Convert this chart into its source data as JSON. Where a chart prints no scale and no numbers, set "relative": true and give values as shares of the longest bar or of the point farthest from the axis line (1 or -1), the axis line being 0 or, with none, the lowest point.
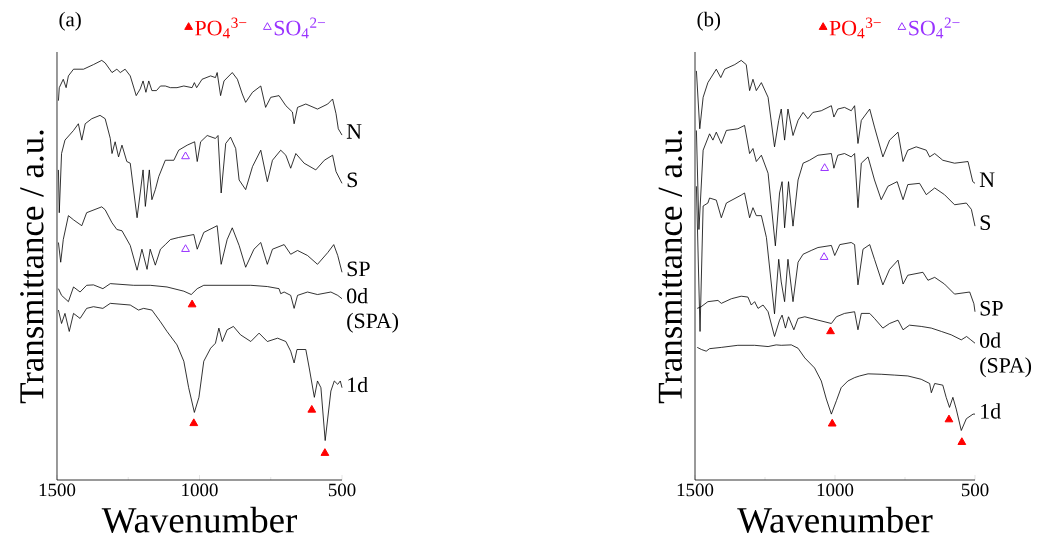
{
  "chart_data": [
    {
      "type": "line",
      "title": "(a)",
      "xlabel": "Wavenumber",
      "ylabel": "Transmittance / a.u.",
      "relative": true,
      "xlim": [
        1500,
        500
      ],
      "xticks": [
        1500,
        1000,
        500
      ],
      "legend": "top",
      "series": [
        {
          "name": "N",
          "color": "#000000",
          "x": [
            1495,
            1492,
            1478,
            1468,
            1460,
            1442,
            1407,
            1372,
            1343,
            1331,
            1307,
            1290,
            1278,
            1261,
            1243,
            1222,
            1208,
            1198,
            1188,
            1178,
            1167,
            1151,
            1137,
            1120,
            1102,
            1079,
            1055,
            1026,
            1018,
            1010,
            991,
            961,
            944,
            938,
            926,
            914,
            885,
            867,
            850,
            838,
            814,
            785,
            768,
            750,
            721,
            697,
            674,
            668,
            656,
            627,
            586,
            550,
            533,
            521,
            513,
            500
          ],
          "values": [
            0.904,
            0.935,
            0.955,
            0.935,
            0.963,
            0.979,
            0.979,
            0.99,
            1,
            0.994,
            0.971,
            0.979,
            0.971,
            0.979,
            0.963,
            0.916,
            0.932,
            0.951,
            0.924,
            0.951,
            0.928,
            0.928,
            0.939,
            0.939,
            0.935,
            0.935,
            0.939,
            0.935,
            0.947,
            0.935,
            0.955,
            0.963,
            0.959,
            0.971,
            0.916,
            0.951,
            0.971,
            0.955,
            0.92,
            0.9,
            0.924,
            0.939,
            0.888,
            0.912,
            0.916,
            0.892,
            0.877,
            0.849,
            0.888,
            0.896,
            0.884,
            0.896,
            0.908,
            0.873,
            0.837,
            0.822
          ]
        },
        {
          "name": "S",
          "color": "#000000",
          "x": [
            1495,
            1492,
            1484,
            1472,
            1442,
            1425,
            1413,
            1401,
            1378,
            1349,
            1331,
            1313,
            1307,
            1296,
            1284,
            1272,
            1255,
            1243,
            1219,
            1208,
            1198,
            1190,
            1176,
            1167,
            1155,
            1143,
            1120,
            1090,
            1073,
            1043,
            1017,
            1008,
            996,
            973,
            944,
            935,
            924,
            908,
            891,
            873,
            861,
            838,
            814,
            785,
            762,
            744,
            715,
            697,
            680,
            662,
            633,
            592,
            562,
            533,
            521,
            500
          ],
          "values": [
            0.739,
            0.637,
            0.778,
            0.81,
            0.833,
            0.849,
            0.81,
            0.849,
            0.861,
            0.869,
            0.861,
            0.814,
            0.778,
            0.806,
            0.77,
            0.798,
            0.759,
            0.755,
            0.625,
            0.684,
            0.739,
            0.652,
            0.739,
            0.668,
            0.692,
            0.723,
            0.762,
            0.762,
            0.786,
            0.798,
            0.806,
            0.759,
            0.806,
            0.821,
            0.814,
            0.821,
            0.684,
            0.802,
            0.817,
            0.79,
            0.715,
            0.692,
            0.747,
            0.786,
            0.711,
            0.762,
            0.786,
            0.774,
            0.743,
            0.778,
            0.755,
            0.739,
            0.762,
            0.774,
            0.735,
            0.707
          ]
        },
        {
          "name": "SP",
          "color": "#000000",
          "x": [
            1495,
            1487,
            1478,
            1460,
            1442,
            1413,
            1396,
            1343,
            1331,
            1307,
            1290,
            1272,
            1243,
            1219,
            1202,
            1184,
            1173,
            1155,
            1137,
            1120,
            1102,
            1073,
            1020,
            1008,
            985,
            938,
            924,
            903,
            885,
            861,
            838,
            809,
            785,
            762,
            744,
            703,
            680,
            656,
            621,
            586,
            550,
            529,
            515,
            500
          ],
          "values": [
            0.566,
            0.519,
            0.573,
            0.63,
            0.62,
            0.606,
            0.637,
            0.651,
            0.644,
            0.613,
            0.597,
            0.594,
            0.559,
            0.5,
            0.55,
            0.502,
            0.55,
            0.512,
            0.55,
            0.561,
            0.573,
            0.578,
            0.585,
            0.55,
            0.59,
            0.606,
            0.514,
            0.573,
            0.601,
            0.559,
            0.507,
            0.55,
            0.566,
            0.514,
            0.55,
            0.561,
            0.538,
            0.547,
            0.535,
            0.514,
            0.542,
            0.561,
            0.535,
            0.495
          ]
        },
        {
          "name": "0d (SPA)",
          "color": "#000000",
          "x": [
            1495,
            1484,
            1460,
            1442,
            1419,
            1396,
            1372,
            1339,
            1313,
            1231,
            1173,
            1114,
            1055,
            1029,
            1008,
            985,
            820,
            762,
            721,
            715,
            703,
            680,
            668,
            656,
            621,
            586,
            539,
            515,
            500
          ],
          "values": [
            0.456,
            0.44,
            0.425,
            0.46,
            0.448,
            0.464,
            0.465,
            0.456,
            0.468,
            0.464,
            0.464,
            0.46,
            0.45,
            0.442,
            0.456,
            0.464,
            0.464,
            0.461,
            0.456,
            0.444,
            0.448,
            0.44,
            0.409,
            0.44,
            0.448,
            0.442,
            0.448,
            0.44,
            0.432
          ]
        },
        {
          "name": "1d",
          "color": "#000000",
          "x": [
            1495,
            1484,
            1472,
            1457,
            1442,
            1419,
            1396,
            1372,
            1339,
            1313,
            1243,
            1214,
            1196,
            1167,
            1137,
            1114,
            1079,
            1055,
            1038,
            1018,
            1002,
            985,
            961,
            944,
            932,
            920,
            903,
            881,
            856,
            820,
            791,
            762,
            726,
            697,
            680,
            668,
            658,
            627,
            615,
            597,
            586,
            574,
            559,
            539,
            527,
            515,
            506,
            500
          ],
          "values": [
            0.405,
            0.373,
            0.397,
            0.354,
            0.397,
            0.385,
            0.409,
            0.413,
            0.409,
            0.421,
            0.417,
            0.405,
            0.409,
            0.405,
            0.377,
            0.354,
            0.322,
            0.283,
            0.22,
            0.161,
            0.197,
            0.283,
            0.314,
            0.326,
            0.362,
            0.33,
            0.358,
            0.366,
            0.346,
            0.33,
            0.35,
            0.33,
            0.338,
            0.33,
            0.307,
            0.279,
            0.311,
            0.311,
            0.267,
            0.197,
            0.236,
            0.22,
            0.094,
            0.212,
            0.236,
            0.228,
            0.236,
            0.22
          ]
        },
        {
          "type": "scatter",
          "name": "PO$_{4}$$^{3−}$",
          "color": "#ff0000",
          "marker": "triangle",
          "x": [
            1026,
            1020,
            606,
            560
          ],
          "values": [
            0.418,
            0.135,
            0.167,
            0.064
          ]
        },
        {
          "type": "scatter",
          "name": "SO$_{4}$$^{2−}$",
          "color": "#9933ff",
          "marker": "triangle",
          "x": [
            1049,
            1049
          ],
          "values": [
            0.771,
            0.55
          ]
        }
      ]
    },
    {
      "type": "line",
      "title": "(b)",
      "xlabel": "Wavenumber",
      "ylabel": "Transmittance / a.u.",
      "relative": true,
      "xlim": [
        1500,
        500
      ],
      "xticks": [
        1500,
        1000,
        500
      ],
      "legend": "top",
      "series": [
        {
          "name": "N",
          "color": "#000000",
          "x": [
            1495,
            1483,
            1471,
            1454,
            1424,
            1408,
            1394,
            1358,
            1335,
            1317,
            1305,
            1293,
            1281,
            1263,
            1239,
            1216,
            1201,
            1192,
            1180,
            1168,
            1150,
            1132,
            1114,
            1097,
            1079,
            1049,
            1013,
            1004,
            990,
            966,
            942,
            930,
            918,
            906,
            876,
            859,
            829,
            805,
            775,
            757,
            740,
            710,
            674,
            662,
            644,
            615,
            573,
            525,
            508,
            500
          ],
          "values": [
            0.975,
            0.837,
            0.912,
            0.947,
            0.979,
            0.959,
            0.979,
            0.99,
            1,
            0.99,
            0.928,
            0.955,
            0.928,
            0.947,
            0.912,
            0.794,
            0.857,
            0.884,
            0.81,
            0.884,
            0.821,
            0.857,
            0.876,
            0.861,
            0.876,
            0.88,
            0.892,
            0.865,
            0.884,
            0.888,
            0.88,
            0.892,
            0.802,
            0.857,
            0.884,
            0.841,
            0.77,
            0.81,
            0.829,
            0.759,
            0.786,
            0.794,
            0.786,
            0.77,
            0.778,
            0.762,
            0.755,
            0.759,
            0.711,
            0.707
          ]
        },
        {
          "name": "S",
          "color": "#000000",
          "x": [
            1495,
            1486,
            1471,
            1448,
            1436,
            1424,
            1406,
            1388,
            1347,
            1323,
            1305,
            1293,
            1281,
            1263,
            1239,
            1213,
            1198,
            1189,
            1180,
            1166,
            1150,
            1132,
            1114,
            1091,
            1061,
            1013,
            1004,
            990,
            966,
            942,
            930,
            918,
            906,
            882,
            859,
            835,
            811,
            778,
            757,
            740,
            698,
            674,
            644,
            609,
            573,
            531,
            513,
            500
          ],
          "values": [
            0.833,
            0.597,
            0.786,
            0.825,
            0.81,
            0.829,
            0.802,
            0.833,
            0.837,
            0.845,
            0.778,
            0.79,
            0.759,
            0.774,
            0.731,
            0.558,
            0.684,
            0.711,
            0.601,
            0.711,
            0.605,
            0.715,
            0.755,
            0.762,
            0.774,
            0.778,
            0.743,
            0.774,
            0.778,
            0.77,
            0.778,
            0.649,
            0.755,
            0.77,
            0.715,
            0.668,
            0.7,
            0.711,
            0.668,
            0.704,
            0.707,
            0.68,
            0.696,
            0.68,
            0.656,
            0.66,
            0.645,
            0.605
          ]
        },
        {
          "name": "SP",
          "color": "#000000",
          "x": [
            1495,
            1482,
            1471,
            1454,
            1448,
            1424,
            1406,
            1388,
            1335,
            1323,
            1305,
            1293,
            1281,
            1263,
            1245,
            1216,
            1201,
            1192,
            1180,
            1168,
            1150,
            1132,
            1114,
            1085,
            1061,
            1013,
            1001,
            983,
            942,
            930,
            918,
            900,
            876,
            859,
            829,
            805,
            775,
            757,
            740,
            686,
            668,
            644,
            609,
            573,
            519,
            504,
            500
          ],
          "values": [
            0.7,
            0.354,
            0.653,
            0.66,
            0.672,
            0.667,
            0.625,
            0.66,
            0.679,
            0.684,
            0.625,
            0.649,
            0.63,
            0.63,
            0.578,
            0.396,
            0.526,
            0.472,
            0.425,
            0.526,
            0.425,
            0.519,
            0.538,
            0.547,
            0.554,
            0.559,
            0.535,
            0.561,
            0.566,
            0.561,
            0.465,
            0.55,
            0.561,
            0.526,
            0.465,
            0.502,
            0.524,
            0.467,
            0.488,
            0.495,
            0.476,
            0.483,
            0.467,
            0.443,
            0.448,
            0.42,
            0.401
          ]
        },
        {
          "name": "0d (SPA)",
          "color": "#000000",
          "x": [
            1492,
            1478,
            1454,
            1418,
            1406,
            1370,
            1335,
            1311,
            1299,
            1287,
            1275,
            1257,
            1239,
            1216,
            1198,
            1189,
            1177,
            1166,
            1147,
            1132,
            1108,
            1061,
            1013,
            995,
            966,
            930,
            918,
            906,
            876,
            859,
            829,
            805,
            775,
            757,
            734,
            692,
            656,
            620,
            585,
            549,
            530,
            515,
            500
          ],
          "values": [
            0.409,
            0.413,
            0.425,
            0.428,
            0.421,
            0.432,
            0.438,
            0.436,
            0.417,
            0.425,
            0.409,
            0.417,
            0.401,
            0.342,
            0.381,
            0.393,
            0.362,
            0.389,
            0.358,
            0.385,
            0.389,
            0.381,
            0.373,
            0.389,
            0.397,
            0.401,
            0.358,
            0.397,
            0.397,
            0.385,
            0.362,
            0.373,
            0.381,
            0.358,
            0.369,
            0.366,
            0.362,
            0.354,
            0.346,
            0.334,
            0.342,
            0.334,
            0.326
          ]
        },
        {
          "name": "1d",
          "color": "#000000",
          "x": [
            1492,
            1477,
            1460,
            1448,
            1406,
            1347,
            1287,
            1239,
            1210,
            1192,
            1156,
            1132,
            1108,
            1073,
            1049,
            1031,
            1013,
            995,
            978,
            954,
            930,
            912,
            882,
            835,
            787,
            740,
            692,
            662,
            656,
            644,
            615,
            603,
            591,
            579,
            567,
            549,
            531,
            507,
            500
          ],
          "values": [
            0.316,
            0.311,
            0.307,
            0.313,
            0.316,
            0.321,
            0.321,
            0.318,
            0.322,
            0.321,
            0.322,
            0.314,
            0.291,
            0.267,
            0.236,
            0.193,
            0.157,
            0.189,
            0.22,
            0.236,
            0.244,
            0.248,
            0.253,
            0.252,
            0.25,
            0.248,
            0.24,
            0.23,
            0.208,
            0.23,
            0.226,
            0.197,
            0.173,
            0.197,
            0.169,
            0.118,
            0.146,
            0.157,
            0.157
          ]
        },
        {
          "type": "scatter",
          "name": "PO$_{4}$$^{3−}$",
          "color": "#ff0000",
          "marker": "triangle",
          "x": [
            1016,
            1010,
            593,
            547
          ],
          "values": [
            0.354,
            0.134,
            0.144,
            0.09
          ]
        },
        {
          "type": "scatter",
          "name": "SO$_{4}$$^{2−}$",
          "color": "#9933ff",
          "marker": "triangle",
          "x": [
            1037,
            1039
          ],
          "values": [
            0.743,
            0.531
          ]
        }
      ]
    }
  ]
}
